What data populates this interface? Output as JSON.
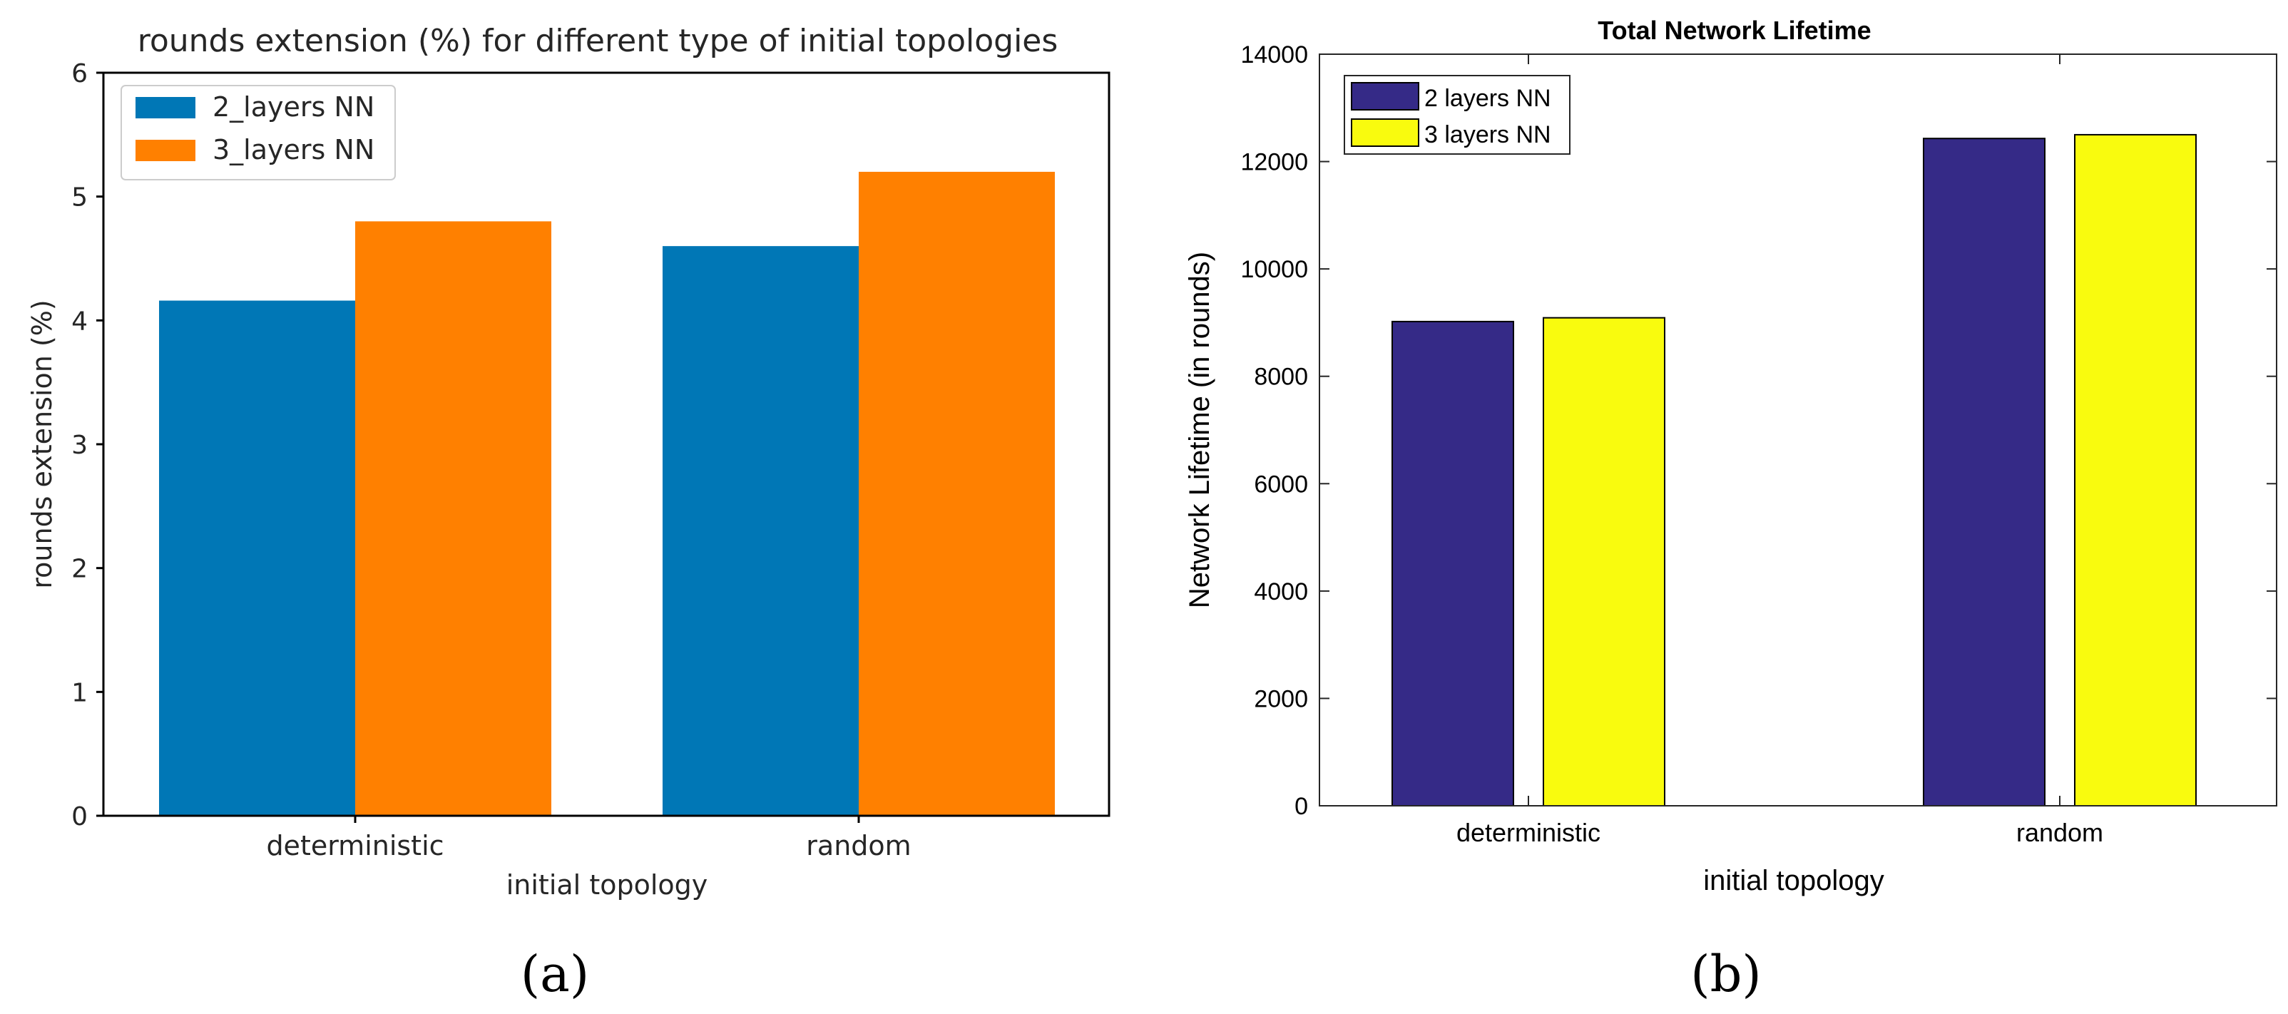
{
  "figure": {
    "panel_a_label": "(a)",
    "panel_b_label": "(b)"
  },
  "chart_data": [
    {
      "panel": "a",
      "type": "bar",
      "title": "rounds extension (%) for different type of initial topologies",
      "xlabel": "initial topology",
      "ylabel": "rounds extension (%)",
      "categories": [
        "deterministic",
        "random"
      ],
      "ylim": [
        0,
        6
      ],
      "yticks": [
        0,
        1,
        2,
        3,
        4,
        5,
        6
      ],
      "grid": false,
      "legend_position": "top-left",
      "series": [
        {
          "name": "2_layers NN",
          "color": "#0077b6",
          "values": [
            4.16,
            4.6
          ]
        },
        {
          "name": "3_layers NN",
          "color": "#ff8000",
          "values": [
            4.8,
            5.2
          ]
        }
      ]
    },
    {
      "panel": "b",
      "type": "bar",
      "title": "Total Network Lifetime",
      "xlabel": "initial topology",
      "ylabel": "Network Lifetime (in rounds)",
      "categories": [
        "deterministic",
        "random"
      ],
      "ylim": [
        0,
        14000
      ],
      "yticks": [
        0,
        2000,
        4000,
        6000,
        8000,
        10000,
        12000,
        14000
      ],
      "grid": false,
      "legend_position": "top-left",
      "series": [
        {
          "name": "2 layers NN",
          "color": "#352a87",
          "values": [
            9020,
            12430
          ]
        },
        {
          "name": "3 layers NN",
          "color": "#f9fb0e",
          "values": [
            9090,
            12500
          ]
        }
      ]
    }
  ]
}
